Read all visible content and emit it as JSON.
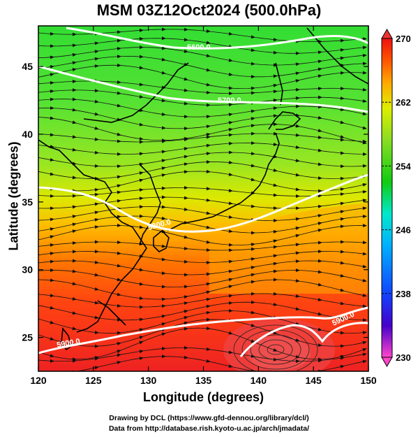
{
  "title": "MSM 03Z12Oct2024 (500.0hPa)",
  "chart_data": {
    "type": "map",
    "xlabel": "Longitude (degrees)",
    "ylabel": "Latitude  (degrees)",
    "xlim": [
      120,
      150
    ],
    "ylim": [
      22.5,
      48
    ],
    "xticks": [
      "120",
      "125",
      "130",
      "135",
      "140",
      "145",
      "150"
    ],
    "yticks": [
      "25",
      "30",
      "35",
      "40",
      "45"
    ],
    "colorbar": {
      "range": [
        230,
        270
      ],
      "ticks": [
        "270",
        "262",
        "254",
        "246",
        "238",
        "230"
      ],
      "colors": [
        "#ff44cc",
        "#4400cc",
        "#1144ff",
        "#00b0ff",
        "#00e8cc",
        "#11cc11",
        "#88dd22",
        "#ddee00",
        "#ffaa00",
        "#ff5500",
        "#ee1111"
      ]
    },
    "contours": [
      {
        "label": "5600.0",
        "value": 5600
      },
      {
        "label": "5700.0",
        "value": 5700
      },
      {
        "label": "5800.0",
        "value": 5800
      },
      {
        "label": "5900.0",
        "value": 5900
      },
      {
        "label": "5900.0",
        "value": 5900
      }
    ]
  },
  "credits": {
    "line1": "Drawing by DCL (https://www.gfd-dennou.org/library/dcl/)",
    "line2": "Data from http://database.rish.kyoto-u.ac.jp/arch/jmadata/"
  }
}
